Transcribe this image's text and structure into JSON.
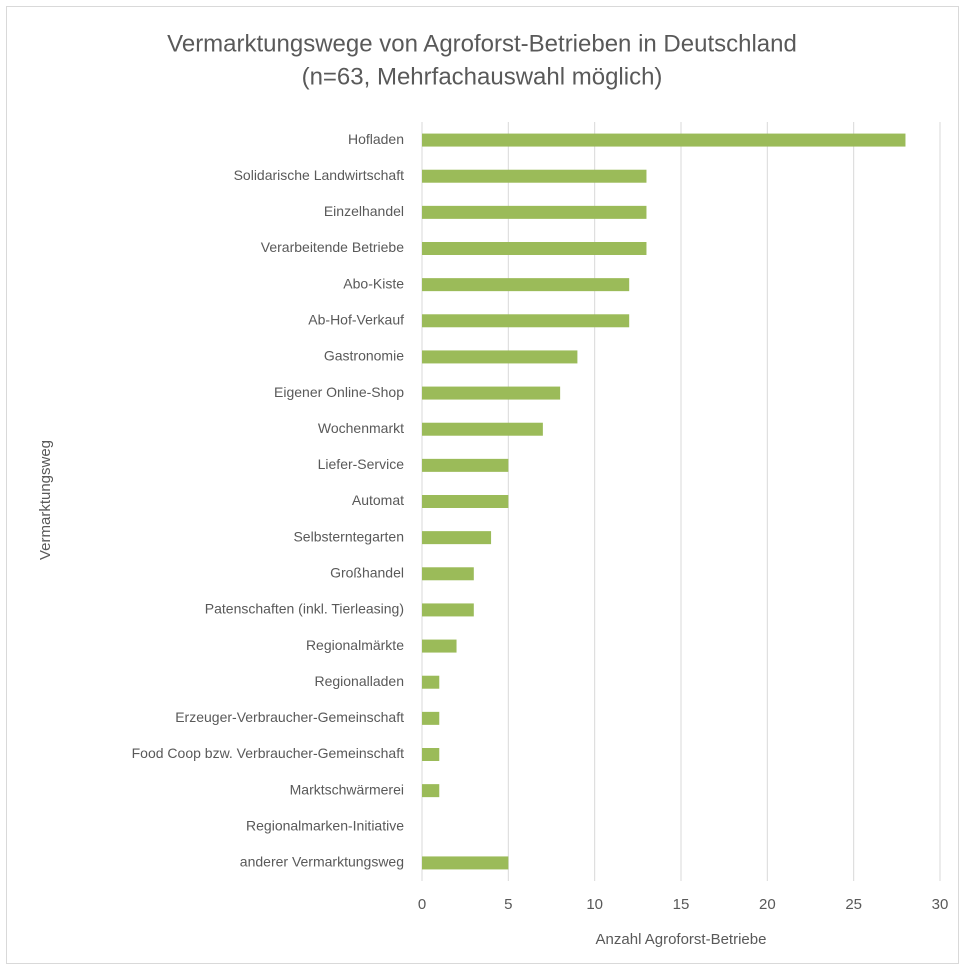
{
  "chart_data": {
    "type": "barh",
    "title": "Vermarktungswege von Agroforst-Betrieben in Deutschland",
    "subtitle": "(n=63, Mehrfachauswahl möglich)",
    "xlabel": "Anzahl Agroforst-Betriebe",
    "ylabel": "Vermarktungsweg",
    "categories": [
      "Hofladen",
      "Solidarische Landwirtschaft",
      "Einzelhandel",
      "Verarbeitende Betriebe",
      "Abo-Kiste",
      "Ab-Hof-Verkauf",
      "Gastronomie",
      "Eigener Online-Shop",
      "Wochenmarkt",
      "Liefer-Service",
      "Automat",
      "Selbsterntegarten",
      "Großhandel",
      "Patenschaften (inkl. Tierleasing)",
      "Regionalmärkte",
      "Regionalladen",
      "Erzeuger-Verbraucher-Gemeinschaft",
      "Food Coop bzw. Verbraucher-Gemeinschaft",
      "Marktschwärmerei",
      "Regionalmarken-Initiative",
      "anderer Vermarktungsweg"
    ],
    "values": [
      28,
      13,
      13,
      13,
      12,
      12,
      9,
      8,
      7,
      5,
      5,
      4,
      3,
      3,
      2,
      1,
      1,
      1,
      1,
      0,
      5
    ],
    "color": "#9bbb59",
    "xlim": [
      0,
      30
    ],
    "xticks": [
      0,
      5,
      10,
      15,
      20,
      25,
      30
    ],
    "grid": true
  }
}
